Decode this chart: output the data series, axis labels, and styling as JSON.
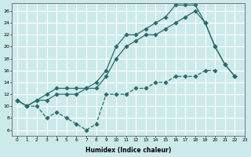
{
  "line1_x": [
    0,
    1,
    2,
    3,
    4,
    5,
    6,
    7,
    8,
    9,
    10,
    11,
    12,
    13,
    14,
    15,
    16,
    17,
    18,
    19,
    20,
    21,
    22
  ],
  "line1_y": [
    11,
    10,
    11,
    12,
    13,
    13,
    13,
    13,
    14,
    16,
    20,
    22,
    22,
    23,
    24,
    25,
    27,
    27,
    27,
    24,
    20,
    17,
    15
  ],
  "line2_x": [
    0,
    1,
    2,
    3,
    4,
    5,
    6,
    7,
    8,
    9,
    10,
    11,
    12,
    13,
    14,
    15,
    16,
    17,
    18,
    19,
    20,
    21,
    22
  ],
  "line2_y": [
    11,
    10,
    11,
    11,
    12,
    12,
    12,
    13,
    13,
    15,
    18,
    20,
    21,
    22,
    22,
    23,
    24,
    25,
    26,
    24,
    20,
    17,
    15
  ],
  "line3_x": [
    0,
    1,
    2,
    3,
    4,
    5,
    6,
    7,
    8,
    9,
    10,
    11,
    12,
    13,
    14,
    15,
    16,
    17,
    18,
    19,
    20,
    21,
    22
  ],
  "line3_y": [
    11,
    10,
    10,
    8,
    9,
    8,
    7,
    6,
    7,
    12,
    12,
    12,
    13,
    13,
    14,
    14,
    15,
    15,
    15,
    16,
    16,
    null,
    15
  ],
  "color": "#2a6b6b",
  "bg_color": "#cdeaea",
  "grid_color": "#ffffff",
  "xlabel": "Humidex (Indice chaleur)",
  "ylim": [
    5,
    27
  ],
  "xlim": [
    -0.5,
    23
  ],
  "yticks": [
    6,
    8,
    10,
    12,
    14,
    16,
    18,
    20,
    22,
    24,
    26
  ],
  "xticks": [
    0,
    1,
    2,
    3,
    4,
    5,
    6,
    7,
    8,
    9,
    10,
    11,
    12,
    13,
    14,
    15,
    16,
    17,
    18,
    19,
    20,
    21,
    22,
    23
  ]
}
